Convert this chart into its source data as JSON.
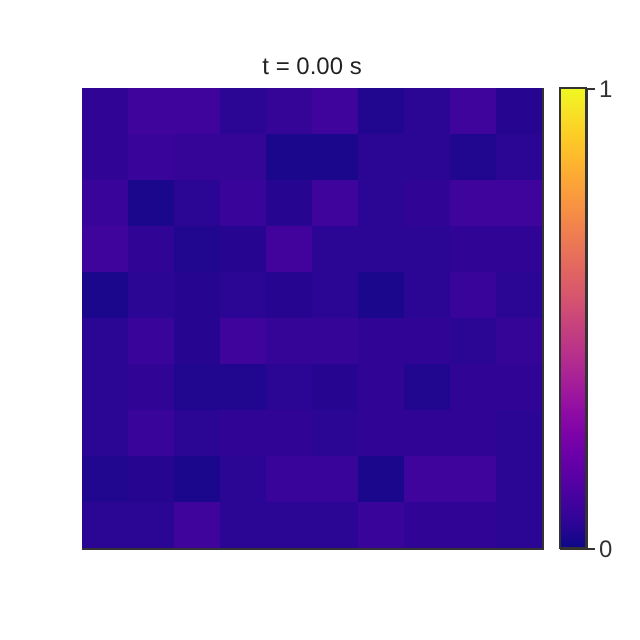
{
  "chart_data": {
    "type": "heatmap",
    "title": "t = 0.00 s",
    "categories": [
      null,
      null,
      null,
      null,
      null,
      null,
      null,
      null,
      null,
      null
    ],
    "y_categories": [
      null,
      null,
      null,
      null,
      null,
      null,
      null,
      null,
      null,
      null
    ],
    "cells": [
      [
        0.06,
        0.09,
        0.09,
        0.05,
        0.07,
        0.09,
        0.03,
        0.05,
        0.09,
        0.04
      ],
      [
        0.06,
        0.08,
        0.07,
        0.07,
        0.02,
        0.02,
        0.05,
        0.05,
        0.03,
        0.05
      ],
      [
        0.08,
        0.02,
        0.05,
        0.08,
        0.04,
        0.09,
        0.05,
        0.06,
        0.09,
        0.09
      ],
      [
        0.09,
        0.06,
        0.03,
        0.04,
        0.1,
        0.05,
        0.05,
        0.05,
        0.06,
        0.06
      ],
      [
        0.02,
        0.05,
        0.04,
        0.05,
        0.04,
        0.05,
        0.02,
        0.05,
        0.08,
        0.05
      ],
      [
        0.05,
        0.08,
        0.04,
        0.09,
        0.07,
        0.07,
        0.06,
        0.06,
        0.05,
        0.07
      ],
      [
        0.05,
        0.06,
        0.03,
        0.03,
        0.05,
        0.04,
        0.06,
        0.03,
        0.06,
        0.06
      ],
      [
        0.05,
        0.08,
        0.05,
        0.06,
        0.06,
        0.05,
        0.06,
        0.06,
        0.06,
        0.05
      ],
      [
        0.03,
        0.04,
        0.02,
        0.05,
        0.08,
        0.08,
        0.02,
        0.09,
        0.09,
        0.05
      ],
      [
        0.05,
        0.05,
        0.09,
        0.05,
        0.05,
        0.05,
        0.08,
        0.06,
        0.06,
        0.05
      ]
    ],
    "clim": [
      0,
      1
    ],
    "cticks": [
      0,
      1
    ]
  }
}
